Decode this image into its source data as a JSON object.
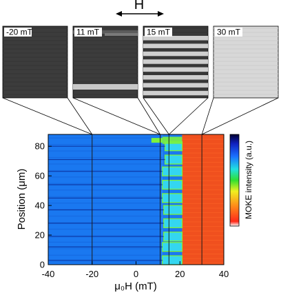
{
  "field_direction_label": "H",
  "panels": [
    {
      "label": "-20 mT",
      "field": -20,
      "stripes": 0,
      "tone": "dark"
    },
    {
      "label": "11 mT",
      "field": 11,
      "stripes": 2,
      "tone": "dark"
    },
    {
      "label": "15 mT",
      "field": 15,
      "stripes": 8,
      "tone": "mixed"
    },
    {
      "label": "30 mT",
      "field": 30,
      "stripes": 0,
      "tone": "light"
    }
  ],
  "colorbar_label": "MOKE intensity (a.u.)",
  "colors": {
    "background_blue": "#1a78f0",
    "domain_cyan": "#34d6f0",
    "saturated_red": "#f0501e",
    "edge_green": "#7cf23c",
    "marker_line": "#1a1a1a"
  },
  "chart_data": {
    "type": "heatmap",
    "xlabel": "μ₀H (mT)",
    "ylabel": "Position (μm)",
    "xlim": [
      -40,
      40
    ],
    "ylim": [
      0,
      88
    ],
    "xticks": [
      "-40",
      "-20",
      "0",
      "20",
      "40"
    ],
    "yticks": [
      "0",
      "20",
      "40",
      "60",
      "80"
    ],
    "xtick_values": [
      -40,
      -20,
      0,
      20,
      40
    ],
    "ytick_values": [
      0,
      20,
      40,
      60,
      80
    ],
    "marked_fields": [
      -20,
      11,
      15,
      30
    ],
    "colorbar": "MOKE intensity (a.u.)",
    "switch_field_low": 12,
    "switch_field_high": 21,
    "stripe_centers": [
      3,
      12,
      19,
      28,
      37,
      45,
      54,
      63,
      71,
      80
    ],
    "early_stripe": {
      "position": 84,
      "field_start": 7
    }
  }
}
